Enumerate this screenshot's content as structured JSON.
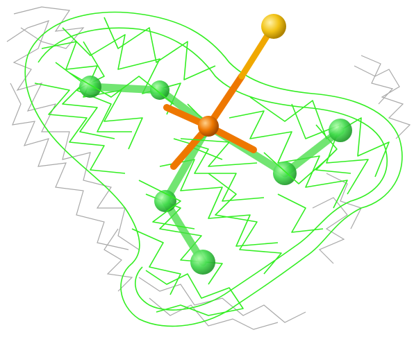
{
  "scene": {
    "background": "#ffffff",
    "mesh_color": "#33ee22",
    "secondary_mesh_color": "#a8a8a8",
    "carbon_color": "#3fd94a",
    "phosphorus_color": "#ee7700",
    "sulfur_color": "#f2c316"
  }
}
